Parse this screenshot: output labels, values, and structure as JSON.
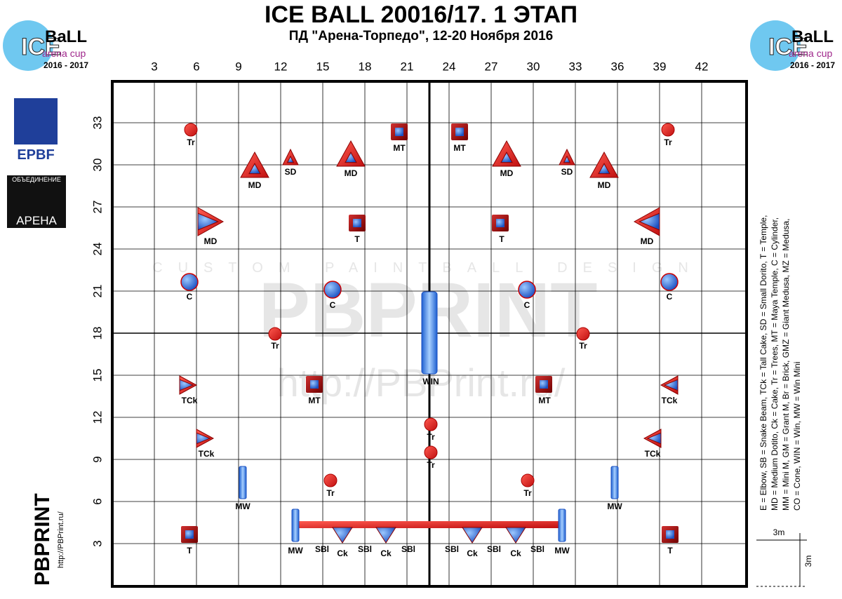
{
  "header": {
    "title": "ICE BALL 20016/17. 1 ЭТАП",
    "subtitle": "ПД \"Арена-Торпедо\", 12-20 Ноября 2016"
  },
  "logos": {
    "ice_top": "ICE",
    "ball_top": "BaLL",
    "arena_cup": "arena cup",
    "season": "2016 - 2017",
    "epbf": "EPBF",
    "union": "ОБЪЕДИНЕНИЕ",
    "arena": "АРЕНА",
    "pbprint": "PBPRINT",
    "site": "http://PBPrint.ru/"
  },
  "watermark": {
    "tagline": "CUSTOM PAINTBALL DESIGN",
    "brand": "PBPRINT",
    "url": "http://PBPrint.ru/"
  },
  "field": {
    "xticks": [
      3,
      6,
      9,
      12,
      15,
      18,
      21,
      24,
      27,
      30,
      33,
      36,
      39,
      42
    ],
    "yticks": [
      3,
      6,
      9,
      12,
      15,
      18,
      21,
      24,
      27,
      30,
      33
    ],
    "bunkers": [
      "Tr",
      "MT",
      "MT",
      "Tr",
      "MD",
      "SD",
      "MD",
      "MD",
      "SD",
      "MD",
      "MD",
      "T",
      "T",
      "MD",
      "C",
      "C",
      "C",
      "C",
      "Tr",
      "WIN",
      "Tr",
      "TCk",
      "MT",
      "MT",
      "TCk",
      "Tr",
      "Tr",
      "TCk",
      "TCk",
      "MW",
      "Tr",
      "Tr",
      "MW",
      "T",
      "T",
      "MW",
      "SBl",
      "Ck",
      "SBl",
      "Ck",
      "SBl",
      "SBl",
      "Ck",
      "SBl",
      "Ck",
      "SBl",
      "MW"
    ]
  },
  "legend": {
    "lines": [
      "E = Elbow, SB = Snake Beam, TCk = Tall Cake, SD = Small Dorito, T = Temple,",
      "MD = Medium Dotito, Ck = Cake, Tr = Trees, MT = Maya Temple, C = Cylinder,",
      "MM = Mini M, GM = Grant M, Br = Brick, GMZ = Giant Medusa, MZ = Medusa,",
      "CO = Cone, WIN = Win, MW = Win Mini"
    ]
  },
  "scale": {
    "horizontal": "3m",
    "vertical": "3m"
  }
}
